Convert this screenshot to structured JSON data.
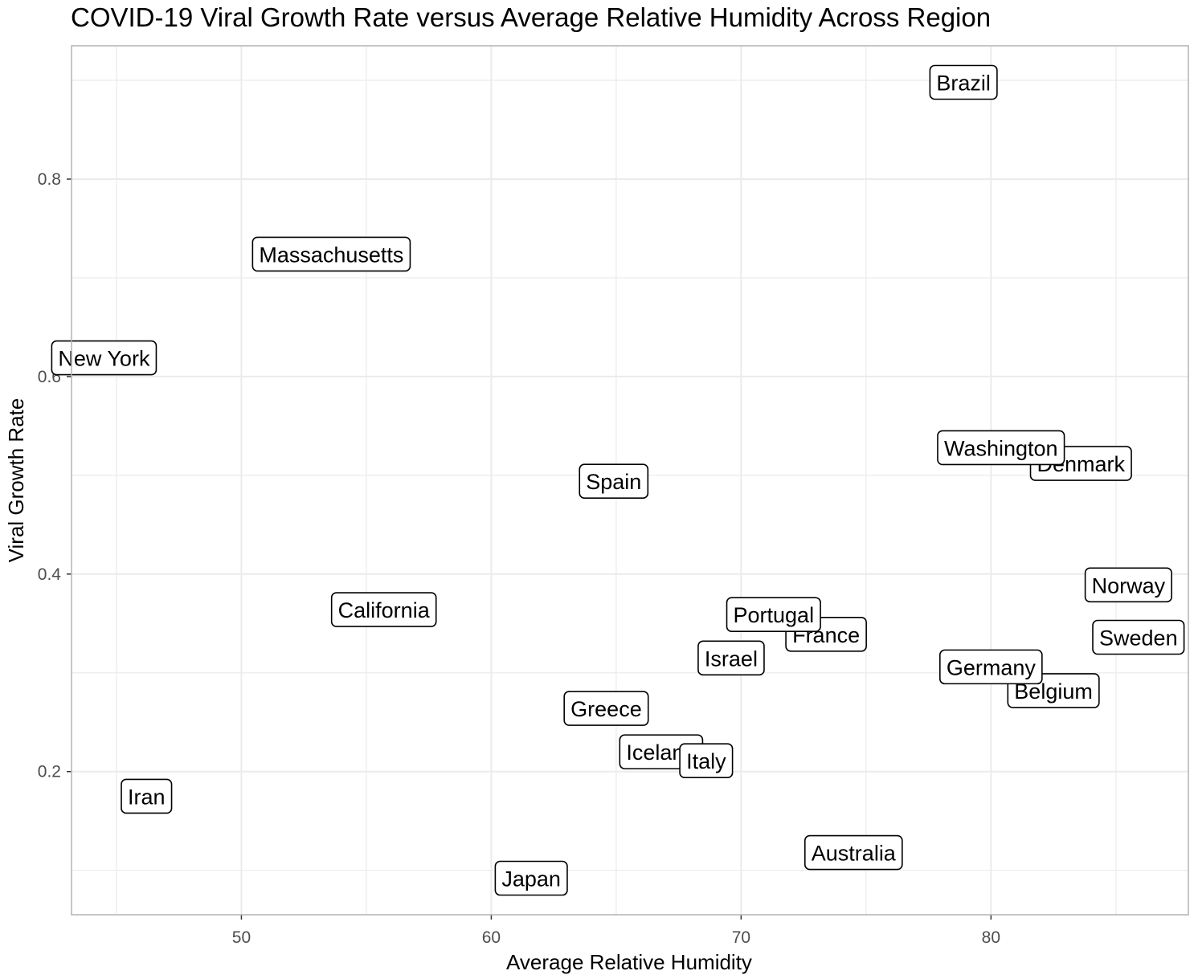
{
  "chart_data": {
    "type": "scatter",
    "title": "COVID-19 Viral Growth Rate versus Average Relative Humidity Across Region",
    "xlabel": "Average Relative Humidity",
    "ylabel": "Viral Growth Rate",
    "xlim": [
      43.2,
      87.9
    ],
    "ylim": [
      0.055,
      0.935
    ],
    "x_ticks": [
      50,
      60,
      70,
      80
    ],
    "y_ticks": [
      0.2,
      0.4,
      0.6,
      0.8
    ],
    "x_tick_labels": [
      "50",
      "60",
      "70",
      "80"
    ],
    "y_tick_labels": [
      "0.2",
      "0.4",
      "0.6",
      "0.8"
    ],
    "x_minor_ticks": [
      45,
      55,
      65,
      75,
      85
    ],
    "y_minor_ticks": [
      0.1,
      0.3,
      0.5,
      0.7,
      0.9
    ],
    "grid": true,
    "labels_as_markers": true,
    "points": [
      {
        "label": "Brazil",
        "x": 78.9,
        "y": 0.898
      },
      {
        "label": "Massachusetts",
        "x": 53.6,
        "y": 0.724
      },
      {
        "label": "New York",
        "x": 44.5,
        "y": 0.619
      },
      {
        "label": "Denmark",
        "x": 83.6,
        "y": 0.512
      },
      {
        "label": "Washington",
        "x": 80.4,
        "y": 0.528
      },
      {
        "label": "Spain",
        "x": 64.9,
        "y": 0.494
      },
      {
        "label": "Norway",
        "x": 85.5,
        "y": 0.389
      },
      {
        "label": "California",
        "x": 55.7,
        "y": 0.364
      },
      {
        "label": "France",
        "x": 73.4,
        "y": 0.339
      },
      {
        "label": "Portugal",
        "x": 71.3,
        "y": 0.359
      },
      {
        "label": "Sweden",
        "x": 85.9,
        "y": 0.336
      },
      {
        "label": "Israel",
        "x": 69.6,
        "y": 0.315
      },
      {
        "label": "Belgium",
        "x": 82.5,
        "y": 0.282
      },
      {
        "label": "Germany",
        "x": 80.0,
        "y": 0.306
      },
      {
        "label": "Greece",
        "x": 64.6,
        "y": 0.264
      },
      {
        "label": "Iceland",
        "x": 66.8,
        "y": 0.22
      },
      {
        "label": "Italy",
        "x": 68.6,
        "y": 0.211
      },
      {
        "label": "Iran",
        "x": 46.2,
        "y": 0.175
      },
      {
        "label": "Australia",
        "x": 74.5,
        "y": 0.118
      },
      {
        "label": "Japan",
        "x": 61.6,
        "y": 0.092
      }
    ]
  }
}
